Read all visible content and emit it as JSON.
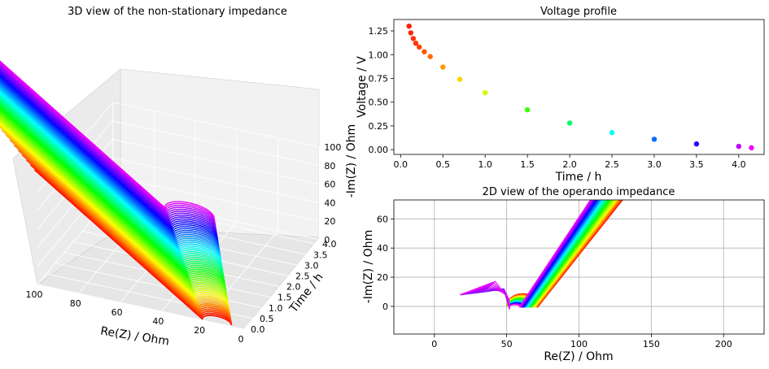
{
  "chart_data": [
    {
      "type": "3d-line",
      "title": "3D view of the non-stationary impedance",
      "xlabel": "Re(Z) / Ohm",
      "ylabel": "Time / h",
      "zlabel": "-Im(Z) / Ohm",
      "x_ticks": [
        "100",
        "80",
        "60",
        "40",
        "20",
        "0"
      ],
      "y_ticks": [
        "0.0",
        "0.5",
        "1.0",
        "1.5",
        "2.0",
        "2.5",
        "3.0",
        "3.5",
        "4.0"
      ],
      "z_ticks": [
        "0",
        "20",
        "40",
        "60",
        "80",
        "100"
      ],
      "xlim": [
        0,
        100
      ],
      "ylim": [
        0,
        4.2
      ],
      "zlim": [
        0,
        100
      ],
      "grid": true,
      "colormap": "hsv (red at 0 h to magenta at 4.2 h)"
    },
    {
      "type": "scatter",
      "title": "Voltage profile",
      "xlabel": "Time / h",
      "ylabel": "Voltage / V",
      "x_ticks": [
        "0.0",
        "0.5",
        "1.0",
        "1.5",
        "2.0",
        "2.5",
        "3.0",
        "3.5",
        "4.0"
      ],
      "y_ticks": [
        "0.00",
        "0.25",
        "0.50",
        "0.75",
        "1.00",
        "1.25"
      ],
      "xlim": [
        -0.08,
        4.3
      ],
      "ylim": [
        -0.05,
        1.37
      ],
      "grid": false,
      "points": [
        {
          "x": 0.1,
          "y": 1.3
        },
        {
          "x": 0.12,
          "y": 1.23
        },
        {
          "x": 0.15,
          "y": 1.17
        },
        {
          "x": 0.18,
          "y": 1.12
        },
        {
          "x": 0.22,
          "y": 1.08
        },
        {
          "x": 0.28,
          "y": 1.03
        },
        {
          "x": 0.35,
          "y": 0.98
        },
        {
          "x": 0.5,
          "y": 0.87
        },
        {
          "x": 0.7,
          "y": 0.74
        },
        {
          "x": 1.0,
          "y": 0.6
        },
        {
          "x": 1.5,
          "y": 0.42
        },
        {
          "x": 2.0,
          "y": 0.28
        },
        {
          "x": 2.5,
          "y": 0.18
        },
        {
          "x": 3.0,
          "y": 0.11
        },
        {
          "x": 3.5,
          "y": 0.06
        },
        {
          "x": 4.0,
          "y": 0.035
        },
        {
          "x": 4.15,
          "y": 0.02
        }
      ]
    },
    {
      "type": "line",
      "title": "2D view of the operando impedance",
      "xlabel": "Re(Z) / Ohm",
      "ylabel": "-Im(Z) / Ohm",
      "x_ticks": [
        "0",
        "50",
        "100",
        "150",
        "200"
      ],
      "y_ticks": [
        "0",
        "20",
        "40",
        "60"
      ],
      "xlim": [
        -28,
        228
      ],
      "ylim": [
        -19,
        73
      ],
      "grid": true,
      "colormap": "hsv (red at 0 h to magenta at 4.2 h)"
    }
  ]
}
